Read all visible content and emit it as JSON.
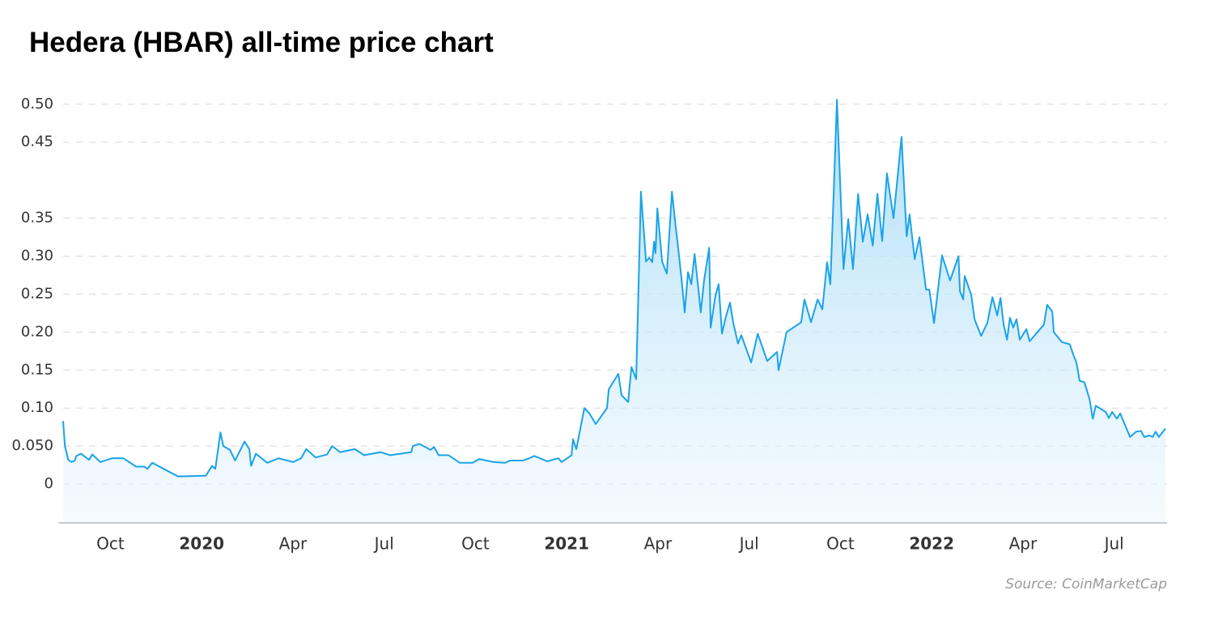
{
  "chart_data": {
    "type": "area",
    "title": "Hedera (HBAR) all-time price chart",
    "source": "Source: CoinMarketCap",
    "color": "#1aa3e8",
    "grid": true,
    "xlim": [
      2019.647,
      2022.667
    ],
    "ylim": [
      -0.05,
      0.52
    ],
    "xticks": [
      {
        "value": 2019.75,
        "label": "Oct"
      },
      2020,
      {
        "value": 2020.25,
        "label": "Apr"
      },
      {
        "value": 2020.5,
        "label": "Jul"
      },
      {
        "value": 2020.75,
        "label": "Oct"
      },
      2021,
      {
        "value": 2021.25,
        "label": "Apr"
      },
      {
        "value": 2021.5,
        "label": "Jul"
      },
      {
        "value": 2021.75,
        "label": "Oct"
      },
      2022,
      {
        "value": 2022.25,
        "label": "Apr"
      },
      {
        "value": 2022.5,
        "label": "Jul"
      }
    ],
    "yticks": [
      {
        "value": 0.5,
        "label": "0.50"
      },
      {
        "value": 0.45,
        "label": "0.45"
      },
      {
        "value": 0.35,
        "label": "0.35"
      },
      {
        "value": 0.3,
        "label": "0.30"
      },
      {
        "value": 0.25,
        "label": "0.25"
      },
      {
        "value": 0.2,
        "label": "0.20"
      },
      {
        "value": 0.15,
        "label": "0.15"
      },
      {
        "value": 0.1,
        "label": "0.10"
      },
      {
        "value": 0.05,
        "label": "0.050"
      },
      0
    ],
    "x": [
      2019.647,
      2019.652,
      2019.661,
      2019.67,
      2019.679,
      2019.683,
      2019.696,
      2019.718,
      2019.727,
      2019.749,
      2019.781,
      2019.812,
      2019.847,
      2019.869,
      2019.878,
      2019.891,
      2019.962,
      2020.038,
      2020.055,
      2020.064,
      2020.078,
      2020.086,
      2020.104,
      2020.118,
      2020.144,
      2020.157,
      2020.162,
      2020.175,
      2020.206,
      2020.237,
      2020.277,
      2020.299,
      2020.313,
      2020.339,
      2020.37,
      2020.384,
      2020.406,
      2020.446,
      2020.472,
      2020.517,
      2020.543,
      2020.601,
      2020.605,
      2020.623,
      2020.654,
      2020.663,
      2020.676,
      2020.703,
      2020.734,
      2020.769,
      2020.787,
      2020.827,
      2020.858,
      2020.871,
      2020.907,
      2020.924,
      2020.938,
      2020.973,
      2021.004,
      2021.013,
      2021.04,
      2021.044,
      2021.053,
      2021.075,
      2021.089,
      2021.106,
      2021.137,
      2021.142,
      2021.168,
      2021.177,
      2021.195,
      2021.204,
      2021.217,
      2021.23,
      2021.244,
      2021.253,
      2021.261,
      2021.266,
      2021.27,
      2021.275,
      2021.288,
      2021.301,
      2021.315,
      2021.324,
      2021.332,
      2021.341,
      2021.35,
      2021.359,
      2021.368,
      2021.377,
      2021.386,
      2021.394,
      2021.403,
      2021.417,
      2021.421,
      2021.434,
      2021.443,
      2021.452,
      2021.461,
      2021.474,
      2021.483,
      2021.496,
      2021.505,
      2021.532,
      2021.55,
      2021.576,
      2021.603,
      2021.607,
      2021.629,
      2021.669,
      2021.678,
      2021.696,
      2021.714,
      2021.727,
      2021.74,
      2021.749,
      2021.758,
      2021.767,
      2021.785,
      2021.798,
      2021.811,
      2021.825,
      2021.838,
      2021.851,
      2021.865,
      2021.878,
      2021.891,
      2021.904,
      2021.922,
      2021.944,
      2021.958,
      2021.966,
      2021.98,
      2021.993,
      2022.011,
      2022.02,
      2022.033,
      2022.055,
      2022.077,
      2022.1,
      2022.104,
      2022.113,
      2022.117,
      2022.135,
      2022.144,
      2022.162,
      2022.179,
      2022.193,
      2022.206,
      2022.215,
      2022.224,
      2022.233,
      2022.241,
      2022.25,
      2022.259,
      2022.268,
      2022.286,
      2022.295,
      2022.334,
      2022.343,
      2022.357,
      2022.361,
      2022.383,
      2022.405,
      2022.414,
      2022.423,
      2022.432,
      2022.445,
      2022.459,
      2022.468,
      2022.476,
      2022.503,
      2022.512,
      2022.521,
      2022.534,
      2022.543,
      2022.57,
      2022.587,
      2022.6,
      2022.609,
      2022.623,
      2022.632,
      2022.64,
      2022.649,
      2022.667
    ],
    "values": [
      0.083,
      0.05,
      0.032,
      0.029,
      0.031,
      0.037,
      0.04,
      0.032,
      0.039,
      0.029,
      0.034,
      0.034,
      0.023,
      0.023,
      0.02,
      0.028,
      0.01,
      0.011,
      0.024,
      0.02,
      0.068,
      0.05,
      0.045,
      0.031,
      0.056,
      0.046,
      0.024,
      0.04,
      0.028,
      0.034,
      0.029,
      0.034,
      0.046,
      0.035,
      0.039,
      0.05,
      0.042,
      0.046,
      0.038,
      0.042,
      0.038,
      0.042,
      0.05,
      0.053,
      0.045,
      0.049,
      0.038,
      0.038,
      0.028,
      0.028,
      0.033,
      0.029,
      0.028,
      0.031,
      0.031,
      0.034,
      0.037,
      0.03,
      0.034,
      0.029,
      0.038,
      0.059,
      0.046,
      0.1,
      0.093,
      0.079,
      0.1,
      0.125,
      0.145,
      0.117,
      0.108,
      0.154,
      0.138,
      0.385,
      0.293,
      0.298,
      0.292,
      0.319,
      0.304,
      0.363,
      0.293,
      0.277,
      0.385,
      0.344,
      0.311,
      0.271,
      0.226,
      0.279,
      0.263,
      0.303,
      0.263,
      0.226,
      0.268,
      0.311,
      0.206,
      0.248,
      0.263,
      0.198,
      0.217,
      0.239,
      0.212,
      0.185,
      0.196,
      0.16,
      0.198,
      0.162,
      0.174,
      0.15,
      0.2,
      0.213,
      0.243,
      0.213,
      0.243,
      0.23,
      0.292,
      0.263,
      0.382,
      0.506,
      0.283,
      0.349,
      0.283,
      0.382,
      0.319,
      0.355,
      0.314,
      0.382,
      0.32,
      0.409,
      0.35,
      0.457,
      0.326,
      0.355,
      0.296,
      0.325,
      0.256,
      0.256,
      0.212,
      0.301,
      0.268,
      0.3,
      0.254,
      0.243,
      0.274,
      0.249,
      0.217,
      0.195,
      0.212,
      0.246,
      0.222,
      0.245,
      0.209,
      0.19,
      0.219,
      0.206,
      0.217,
      0.19,
      0.204,
      0.188,
      0.21,
      0.236,
      0.227,
      0.2,
      0.187,
      0.184,
      0.171,
      0.16,
      0.136,
      0.134,
      0.112,
      0.086,
      0.103,
      0.095,
      0.087,
      0.095,
      0.086,
      0.093,
      0.062,
      0.069,
      0.07,
      0.062,
      0.064,
      0.062,
      0.069,
      0.062,
      0.073
    ]
  }
}
